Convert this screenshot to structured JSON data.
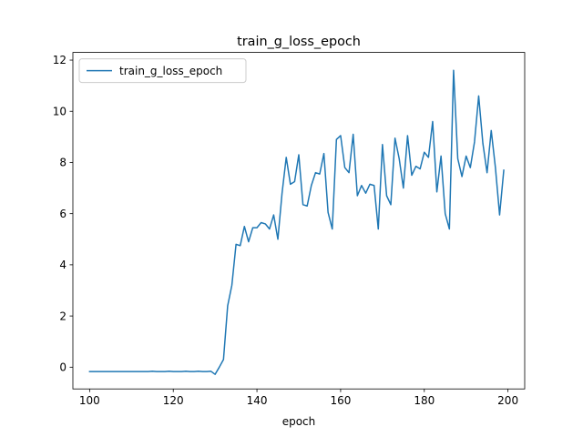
{
  "chart_data": {
    "type": "line",
    "title": "train_g_loss_epoch",
    "xlabel": "epoch",
    "ylabel": "",
    "xlim": [
      96,
      204
    ],
    "ylim": [
      -0.85,
      12.3
    ],
    "xticks": [
      100,
      120,
      140,
      160,
      180,
      200
    ],
    "yticks": [
      0,
      2,
      4,
      6,
      8,
      10,
      12
    ],
    "grid": false,
    "legend": "top-left",
    "series": [
      {
        "name": "train_g_loss_epoch",
        "color": "#1f77b4",
        "x": [
          100,
          101,
          102,
          103,
          104,
          105,
          106,
          107,
          108,
          109,
          110,
          111,
          112,
          113,
          114,
          115,
          116,
          117,
          118,
          119,
          120,
          121,
          122,
          123,
          124,
          125,
          126,
          127,
          128,
          129,
          130,
          131,
          132,
          133,
          134,
          135,
          136,
          137,
          138,
          139,
          140,
          141,
          142,
          143,
          144,
          145,
          146,
          147,
          148,
          149,
          150,
          151,
          152,
          153,
          154,
          155,
          156,
          157,
          158,
          159,
          160,
          161,
          162,
          163,
          164,
          165,
          166,
          167,
          168,
          169,
          170,
          171,
          172,
          173,
          174,
          175,
          176,
          177,
          178,
          179,
          180,
          181,
          182,
          183,
          184,
          185,
          186,
          187,
          188,
          189,
          190,
          191,
          192,
          193,
          194,
          195,
          196,
          197,
          198,
          199
        ],
        "y": [
          -0.17,
          -0.17,
          -0.17,
          -0.17,
          -0.17,
          -0.17,
          -0.17,
          -0.17,
          -0.17,
          -0.17,
          -0.17,
          -0.17,
          -0.17,
          -0.17,
          -0.17,
          -0.16,
          -0.17,
          -0.17,
          -0.17,
          -0.16,
          -0.17,
          -0.17,
          -0.17,
          -0.16,
          -0.17,
          -0.17,
          -0.16,
          -0.17,
          -0.17,
          -0.16,
          -0.28,
          0.0,
          0.3,
          2.4,
          3.2,
          4.8,
          4.75,
          5.5,
          4.9,
          5.45,
          5.45,
          5.65,
          5.6,
          5.4,
          5.95,
          5.0,
          6.8,
          8.2,
          7.15,
          7.25,
          8.3,
          6.35,
          6.3,
          7.1,
          7.6,
          7.55,
          8.35,
          6.05,
          5.4,
          8.9,
          9.05,
          7.8,
          7.6,
          9.1,
          6.7,
          7.1,
          6.8,
          7.15,
          7.1,
          5.4,
          8.7,
          6.7,
          6.35,
          8.95,
          8.15,
          7.0,
          9.05,
          7.5,
          7.85,
          7.75,
          8.4,
          8.2,
          9.6,
          6.85,
          8.25,
          6.0,
          5.4,
          11.6,
          8.15,
          7.45,
          8.25,
          7.8,
          8.8,
          10.6,
          8.75,
          7.6,
          9.25,
          7.8,
          5.95,
          7.7
        ]
      }
    ]
  }
}
